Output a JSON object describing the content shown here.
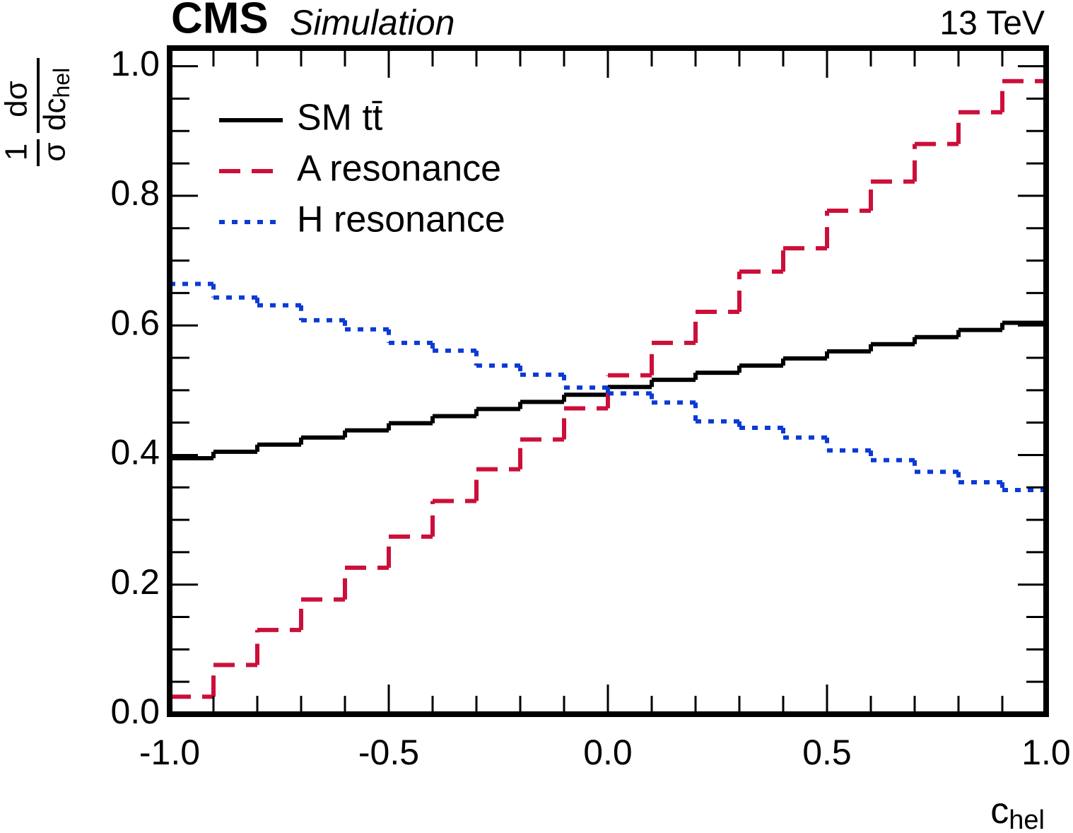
{
  "chart_data": {
    "type": "histogram",
    "experiment": "CMS",
    "status": "Simulation",
    "energy": "13 TeV",
    "xlabel": {
      "text": "c",
      "subscript": "hel"
    },
    "ylabel": {
      "factor": "1",
      "factor_denominator": "σ",
      "numerator": "dσ",
      "denominator": "dc",
      "subscript": "hel"
    },
    "bins": [
      -1.0,
      -0.9,
      -0.8,
      -0.7,
      -0.6,
      -0.5,
      -0.4,
      -0.3,
      -0.2,
      -0.1,
      0.0,
      0.1,
      0.2,
      0.3,
      0.4,
      0.5,
      0.6,
      0.7,
      0.8,
      0.9,
      1.0
    ],
    "series": [
      {
        "name": "SM tt̄",
        "color": "#000000",
        "style": "solid",
        "values": [
          0.395,
          0.405,
          0.416,
          0.427,
          0.438,
          0.449,
          0.46,
          0.471,
          0.482,
          0.493,
          0.505,
          0.516,
          0.527,
          0.538,
          0.549,
          0.56,
          0.571,
          0.582,
          0.593,
          0.604
        ]
      },
      {
        "name": "A resonance",
        "color": "#cc0f3a",
        "style": "dashed",
        "values": [
          0.027,
          0.076,
          0.13,
          0.177,
          0.226,
          0.274,
          0.329,
          0.378,
          0.424,
          0.472,
          0.523,
          0.573,
          0.621,
          0.683,
          0.719,
          0.777,
          0.822,
          0.88,
          0.929,
          0.977
        ]
      },
      {
        "name": "H resonance",
        "color": "#0b3ad6",
        "style": "dotted",
        "values": [
          0.664,
          0.643,
          0.631,
          0.608,
          0.594,
          0.573,
          0.561,
          0.538,
          0.524,
          0.504,
          0.495,
          0.481,
          0.452,
          0.442,
          0.427,
          0.407,
          0.392,
          0.374,
          0.358,
          0.346
        ]
      }
    ],
    "xlim": [
      -1.0,
      1.0
    ],
    "ylim": [
      0,
      1.028
    ],
    "xticks": [
      {
        "value": -1.0,
        "label": "-1.0"
      },
      -0.5,
      {
        "value": 0.0,
        "label": "0.0"
      },
      0.5,
      {
        "value": 1.0,
        "label": "1.0"
      }
    ],
    "yticks": [
      {
        "value": 0,
        "label": "0.0"
      },
      0.2,
      0.4,
      0.6,
      0.8,
      {
        "value": 1.0,
        "label": "1.0"
      }
    ],
    "legend": "upper left"
  }
}
